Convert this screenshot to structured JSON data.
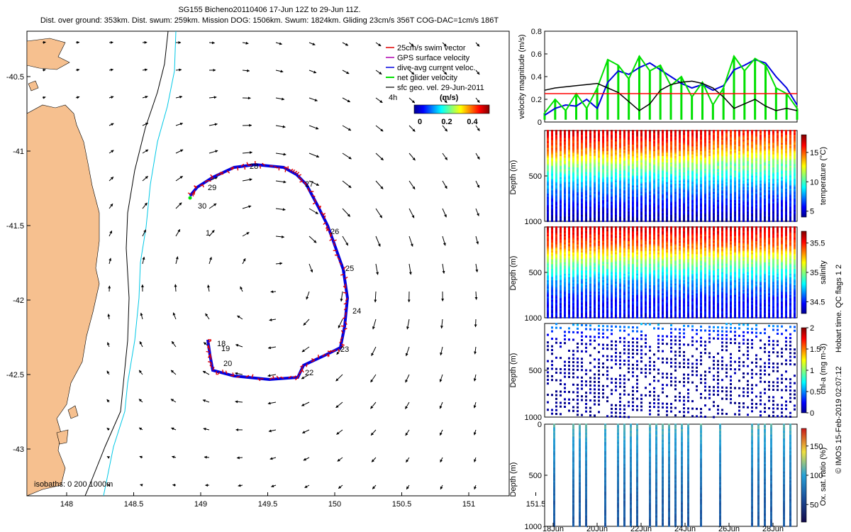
{
  "header": {
    "title": "SG155 Bicheno20110406 17-Jun 12Z to 29-Jun 11Z.",
    "subtitle": "Dist. over ground: 353km. Dist. swum: 259km. Mission DOG: 1506km. Swum: 1824km. Gliding 23cm/s 356T COG-DAC=1cm/s 186T"
  },
  "colors": {
    "land": "#f6c08f",
    "isobath_200": "#000000",
    "isobath_1000": "#00c8e6",
    "track_swim": "#e00000",
    "track_dac": "#0000e0",
    "speed_line": "#ff0000",
    "gps_velocity": "#b000b0",
    "net_velocity": "#00e000",
    "geo_velocity": "#000000"
  },
  "map": {
    "lon_ticks": [
      "148",
      "148.5",
      "149",
      "149.5",
      "150",
      "150.5",
      "151",
      "151.5"
    ],
    "lat_ticks": [
      "-40.5",
      "-41",
      "-41.5",
      "-42",
      "-42.5",
      "-43"
    ],
    "isobaths_label": "isobaths: 0   200  1000m",
    "time_marker": "4h",
    "colorbar_title": "(m/s)",
    "colorbar_ticks": [
      "0",
      "0.2",
      "0.4"
    ],
    "legend": [
      {
        "label": "25cm/s swim vector",
        "color": "#e00000"
      },
      {
        "label": "GPS surface velocity",
        "color": "#b000b0"
      },
      {
        "label": "dive-avg current veloc.",
        "color": "#0000e0"
      },
      {
        "label": "net glider velocity",
        "color": "#00e000"
      },
      {
        "label": "sfc geo. vel. 29-Jun-2011",
        "color": "#000000"
      }
    ],
    "day_labels": [
      "1",
      "18",
      "19",
      "20",
      "22",
      "23",
      "24",
      "25",
      "26",
      "27",
      "28",
      "29",
      "30"
    ]
  },
  "chart_data": [
    {
      "type": "line",
      "title": "velocity magnitude",
      "ylabel": "velocity magnitude (m/s)",
      "ylim": [
        0,
        0.8
      ],
      "y_ticks": [
        "0",
        "0.2",
        "0.4",
        "0.6",
        "0.8"
      ],
      "x_days": [
        17.5,
        18.0,
        18.5,
        19.0,
        19.5,
        20.0,
        20.5,
        21.0,
        21.5,
        22.0,
        22.5,
        23.0,
        23.5,
        24.0,
        24.5,
        25.0,
        25.5,
        26.0,
        26.5,
        27.0,
        27.5,
        28.0,
        28.5,
        29.0,
        29.5
      ],
      "series": [
        {
          "name": "dive-avg current veloc.",
          "values": [
            0.06,
            0.12,
            0.15,
            0.14,
            0.2,
            0.12,
            0.35,
            0.45,
            0.42,
            0.48,
            0.52,
            0.46,
            0.4,
            0.34,
            0.3,
            0.33,
            0.28,
            0.32,
            0.46,
            0.5,
            0.55,
            0.52,
            0.4,
            0.3,
            0.15
          ]
        },
        {
          "name": "net glider velocity",
          "values": [
            0.08,
            0.2,
            0.1,
            0.25,
            0.12,
            0.3,
            0.55,
            0.5,
            0.38,
            0.58,
            0.45,
            0.5,
            0.32,
            0.4,
            0.22,
            0.35,
            0.15,
            0.3,
            0.58,
            0.45,
            0.56,
            0.5,
            0.3,
            0.25,
            0.12
          ]
        },
        {
          "name": "sfc geo. vel. 29-Jun-2011",
          "values": [
            0.28,
            0.3,
            0.31,
            0.32,
            0.33,
            0.34,
            0.3,
            0.26,
            0.18,
            0.1,
            0.16,
            0.28,
            0.33,
            0.35,
            0.36,
            0.34,
            0.3,
            0.22,
            0.12,
            0.16,
            0.2,
            0.14,
            0.1,
            0.12,
            0.1
          ]
        },
        {
          "name": "25cm/s swim vector",
          "values": [
            0.25,
            0.25,
            0.25,
            0.25,
            0.25,
            0.25,
            0.25,
            0.25,
            0.25,
            0.25,
            0.25,
            0.25,
            0.25,
            0.25,
            0.25,
            0.25,
            0.25,
            0.25,
            0.25,
            0.25,
            0.25,
            0.25,
            0.25,
            0.25,
            0.25
          ]
        }
      ]
    },
    {
      "type": "scatter",
      "title": "temperature",
      "ylabel": "Depth (m)",
      "clabel": "temperature (°C)",
      "ylim": [
        1000,
        0
      ],
      "clim": [
        4,
        18
      ],
      "y_ticks": [
        "500",
        "1000"
      ],
      "c_ticks": [
        "5",
        "10",
        "15"
      ],
      "depth_profile": [
        [
          0,
          17
        ],
        [
          200,
          15
        ],
        [
          400,
          11
        ],
        [
          600,
          8
        ],
        [
          800,
          6
        ],
        [
          1000,
          4.5
        ]
      ]
    },
    {
      "type": "scatter",
      "title": "salinity",
      "ylabel": "Depth (m)",
      "clabel": "salinity",
      "ylim": [
        1000,
        0
      ],
      "clim": [
        34.3,
        35.7
      ],
      "y_ticks": [
        "500",
        "1000"
      ],
      "c_ticks": [
        "34.5",
        "35",
        "35.5"
      ],
      "depth_profile": [
        [
          0,
          35.6
        ],
        [
          200,
          35.4
        ],
        [
          400,
          35.0
        ],
        [
          600,
          34.7
        ],
        [
          800,
          34.5
        ],
        [
          1000,
          34.45
        ]
      ]
    },
    {
      "type": "scatter",
      "title": "chlorophyll",
      "ylabel": "Depth (m)",
      "clabel": "chl-a (mg m-3)",
      "ylim": [
        1000,
        0
      ],
      "clim": [
        0,
        2
      ],
      "y_ticks": [
        "500",
        "1000"
      ],
      "c_ticks": [
        "0",
        "0.5",
        "1",
        "1.5",
        "2"
      ],
      "depth_profile": [
        [
          0,
          0.6
        ],
        [
          100,
          0.3
        ],
        [
          200,
          0.08
        ],
        [
          500,
          0.05
        ],
        [
          1000,
          0.05
        ]
      ]
    },
    {
      "type": "scatter",
      "title": "oxygen saturation",
      "ylabel": "Depth (m)",
      "clabel": "Ox. sat. ratio (%)",
      "ylim": [
        1000,
        0
      ],
      "clim": [
        20,
        180
      ],
      "y_ticks": [
        "0",
        "500",
        "1000"
      ],
      "c_ticks": [
        "50",
        "100",
        "150"
      ],
      "depth_profile": [
        [
          0,
          110
        ],
        [
          150,
          100
        ],
        [
          400,
          85
        ],
        [
          700,
          70
        ],
        [
          1000,
          65
        ]
      ]
    }
  ],
  "time_axis": {
    "labels": [
      "18Jun",
      "20Jun",
      "22Jun",
      "24Jun",
      "26Jun",
      "28Jun"
    ]
  },
  "footer": {
    "qc_note": "Hobart time. QC flags 1  2",
    "credit": "© IMOS 15-Feb-2019 02:07:12"
  }
}
